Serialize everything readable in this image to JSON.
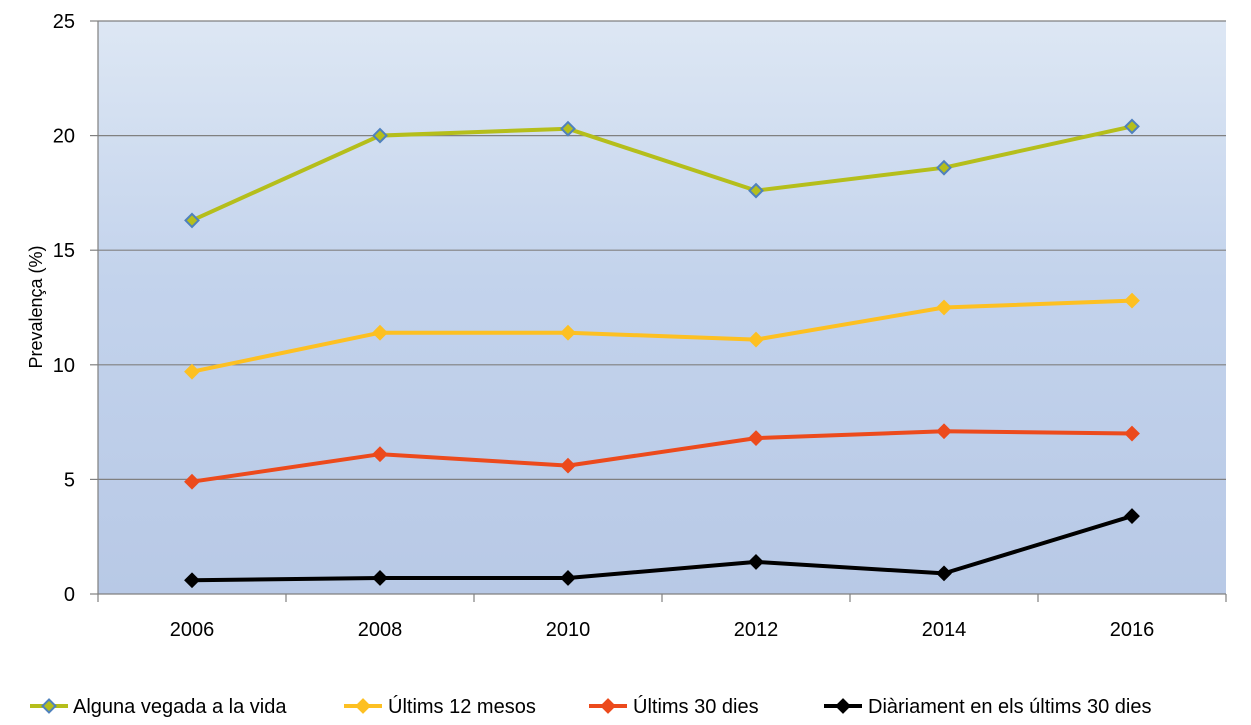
{
  "chart_data": {
    "type": "line",
    "title": "",
    "xlabel": "",
    "ylabel": "Prevalença (%)",
    "x": [
      2006,
      2008,
      2010,
      2012,
      2014,
      2016
    ],
    "x_tick_labels": [
      "2006",
      "2008",
      "2010",
      "2012",
      "2014",
      "2016"
    ],
    "y_tick_labels": [
      "0",
      "5",
      "10",
      "15",
      "20",
      "25"
    ],
    "ylim": [
      0,
      25
    ],
    "y_ticks": [
      0,
      5,
      10,
      15,
      20,
      25
    ],
    "grid": true,
    "legend_position": "bottom",
    "series": [
      {
        "name": "Alguna vegada a la vida",
        "values": [
          16.3,
          20.0,
          20.3,
          17.6,
          18.6,
          20.4
        ],
        "color": "#b5be1b",
        "marker": "diamond",
        "marker_fill": "#b5be1b",
        "marker_stroke": "#4f81bd"
      },
      {
        "name": "Últims 12 mesos",
        "values": [
          9.7,
          11.4,
          11.4,
          11.1,
          12.5,
          12.8
        ],
        "color": "#fdc022",
        "marker": "diamond",
        "marker_fill": "#fdc022",
        "marker_stroke": "#fdc022"
      },
      {
        "name": "Últims 30 dies",
        "values": [
          4.9,
          6.1,
          5.6,
          6.8,
          7.1,
          7.0
        ],
        "color": "#ec4a1c",
        "marker": "diamond",
        "marker_fill": "#ec4a1c",
        "marker_stroke": "#ec4a1c"
      },
      {
        "name": "Diàriament en els últims 30 dies",
        "values": [
          0.6,
          0.7,
          0.7,
          1.4,
          0.9,
          3.4
        ],
        "color": "#000000",
        "marker": "diamond",
        "marker_fill": "#000000",
        "marker_stroke": "#000000"
      }
    ],
    "colors": {
      "plot_gradient_top": "#dde7f4",
      "plot_gradient_bottom": "#b8c9e6",
      "gridline": "#808080",
      "axis": "#808080"
    }
  }
}
